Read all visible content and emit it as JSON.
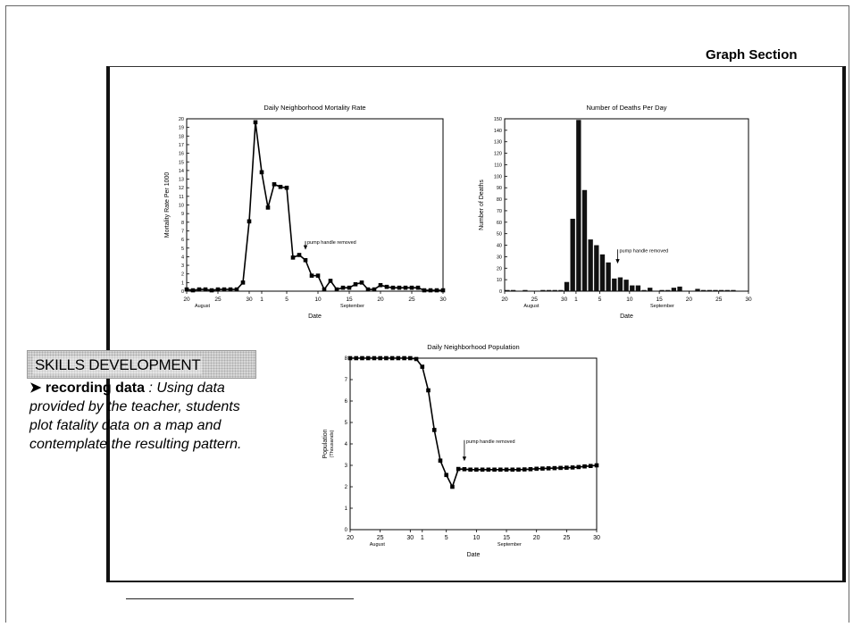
{
  "page": {
    "section_heading": "Graph Section",
    "skills_title": "SKILLS DEVELOPMENT",
    "skills_arrow": "➤",
    "skills_keyword": "recording data",
    "skills_body": " : Using data provided by the teacher, students plot fatality data on a map and contemplate the resulting pattern."
  },
  "chart_data": [
    {
      "type": "line",
      "title": "Daily Neighborhood Mortality Rate",
      "xlabel": "Date",
      "ylabel": "Mortality Rate Per 1000",
      "ylim": [
        0,
        20
      ],
      "yticks": [
        0,
        1,
        2,
        3,
        4,
        5,
        6,
        7,
        8,
        9,
        10,
        11,
        12,
        13,
        14,
        15,
        16,
        17,
        18,
        19,
        20
      ],
      "xlim": [
        0,
        41
      ],
      "xticks": [
        {
          "pos": 0,
          "label": "20"
        },
        {
          "pos": 5,
          "label": "25"
        },
        {
          "pos": 10,
          "label": "30"
        },
        {
          "pos": 12,
          "label": "1"
        },
        {
          "pos": 16,
          "label": "5"
        },
        {
          "pos": 21,
          "label": "10"
        },
        {
          "pos": 26,
          "label": "15"
        },
        {
          "pos": 31,
          "label": "20"
        },
        {
          "pos": 36,
          "label": "25"
        },
        {
          "pos": 41,
          "label": "30"
        }
      ],
      "month_labels": [
        {
          "pos": 2.5,
          "label": "August"
        },
        {
          "pos": 26.5,
          "label": "September"
        }
      ],
      "annotation": {
        "text": "pump handle removed",
        "x": 19,
        "y": 5.5,
        "arrow_to": 4.8
      },
      "series": [
        {
          "x": [
            0,
            1,
            2,
            3,
            4,
            5,
            6,
            7,
            8,
            9,
            10,
            11,
            12,
            13,
            14,
            15,
            16,
            17,
            18,
            19,
            20,
            21,
            22,
            23,
            24,
            25,
            26,
            27,
            28,
            29,
            30,
            31,
            32,
            33,
            34,
            35,
            36,
            37,
            38,
            39,
            40,
            41
          ],
          "values": [
            0.2,
            0.1,
            0.2,
            0.2,
            0.1,
            0.2,
            0.2,
            0.2,
            0.2,
            1.0,
            8.1,
            19.6,
            13.8,
            9.7,
            12.4,
            12.1,
            12.0,
            3.9,
            4.2,
            3.6,
            1.8,
            1.8,
            0.2,
            1.2,
            0.2,
            0.4,
            0.4,
            0.8,
            1.0,
            0.2,
            0.2,
            0.7,
            0.5,
            0.4,
            0.4,
            0.4,
            0.4,
            0.4,
            0.1,
            0.1,
            0.1,
            0.1
          ]
        }
      ]
    },
    {
      "type": "bar",
      "title": "Number of Deaths Per Day",
      "xlabel": "Date",
      "ylabel": "Number of Deaths",
      "ylim": [
        0,
        150
      ],
      "yticks": [
        0,
        10,
        20,
        30,
        40,
        50,
        60,
        70,
        80,
        90,
        100,
        110,
        120,
        130,
        140,
        150
      ],
      "xlim": [
        0,
        41
      ],
      "xticks": [
        {
          "pos": 0,
          "label": "20"
        },
        {
          "pos": 5,
          "label": "25"
        },
        {
          "pos": 10,
          "label": "30"
        },
        {
          "pos": 12,
          "label": "1"
        },
        {
          "pos": 16,
          "label": "5"
        },
        {
          "pos": 21,
          "label": "10"
        },
        {
          "pos": 26,
          "label": "15"
        },
        {
          "pos": 31,
          "label": "20"
        },
        {
          "pos": 36,
          "label": "25"
        },
        {
          "pos": 41,
          "label": "30"
        }
      ],
      "month_labels": [
        {
          "pos": 4.5,
          "label": "August"
        },
        {
          "pos": 26.5,
          "label": "September"
        }
      ],
      "annotation": {
        "text": "pump handle removed",
        "x": 19,
        "y": 34,
        "arrow_to": 24
      },
      "series": [
        {
          "x": [
            0,
            1,
            2,
            3,
            4,
            5,
            6,
            7,
            8,
            9,
            10,
            11,
            12,
            13,
            14,
            15,
            16,
            17,
            18,
            19,
            20,
            21,
            22,
            23,
            24,
            25,
            26,
            27,
            28,
            29,
            30,
            31,
            32,
            33,
            34,
            35,
            36,
            37,
            38,
            39,
            40,
            41
          ],
          "values": [
            1,
            1,
            0,
            1,
            0,
            0,
            1,
            1,
            1,
            1,
            8,
            63,
            149,
            88,
            45,
            40,
            32,
            25,
            11,
            12,
            10,
            5,
            5,
            1,
            3,
            0,
            1,
            1,
            3,
            4,
            0,
            0,
            2,
            1,
            1,
            1,
            1,
            1,
            1,
            0,
            0,
            0
          ]
        }
      ]
    },
    {
      "type": "line",
      "title": "Daily Neighborhood Population",
      "xlabel": "Date",
      "ylabel": "Population",
      "ylabel2": "(Thousands)",
      "ylim": [
        0,
        8
      ],
      "yticks": [
        0,
        1,
        2,
        3,
        4,
        5,
        6,
        7,
        8
      ],
      "xlim": [
        0,
        41
      ],
      "xticks": [
        {
          "pos": 0,
          "label": "20"
        },
        {
          "pos": 5,
          "label": "25"
        },
        {
          "pos": 10,
          "label": "30"
        },
        {
          "pos": 12,
          "label": "1"
        },
        {
          "pos": 16,
          "label": "5"
        },
        {
          "pos": 21,
          "label": "10"
        },
        {
          "pos": 26,
          "label": "15"
        },
        {
          "pos": 31,
          "label": "20"
        },
        {
          "pos": 36,
          "label": "25"
        },
        {
          "pos": 41,
          "label": "30"
        }
      ],
      "month_labels": [
        {
          "pos": 4.5,
          "label": "August"
        },
        {
          "pos": 26.5,
          "label": "September"
        }
      ],
      "annotation": {
        "text": "pump handle removed",
        "x": 19,
        "y": 4.05,
        "arrow_to": 3.2
      },
      "series": [
        {
          "x": [
            0,
            1,
            2,
            3,
            4,
            5,
            6,
            7,
            8,
            9,
            10,
            11,
            12,
            13,
            14,
            15,
            16,
            17,
            18,
            19,
            20,
            21,
            22,
            23,
            24,
            25,
            26,
            27,
            28,
            29,
            30,
            31,
            32,
            33,
            34,
            35,
            36,
            37,
            38,
            39,
            40,
            41
          ],
          "values": [
            8,
            8,
            8,
            8,
            8,
            8,
            8,
            8,
            8,
            8,
            8,
            7.96,
            7.6,
            6.5,
            4.65,
            3.22,
            2.55,
            2.0,
            2.83,
            2.82,
            2.8,
            2.8,
            2.8,
            2.8,
            2.8,
            2.8,
            2.8,
            2.8,
            2.8,
            2.81,
            2.82,
            2.84,
            2.85,
            2.86,
            2.87,
            2.88,
            2.89,
            2.9,
            2.92,
            2.95,
            2.97,
            3.0
          ]
        }
      ]
    }
  ]
}
